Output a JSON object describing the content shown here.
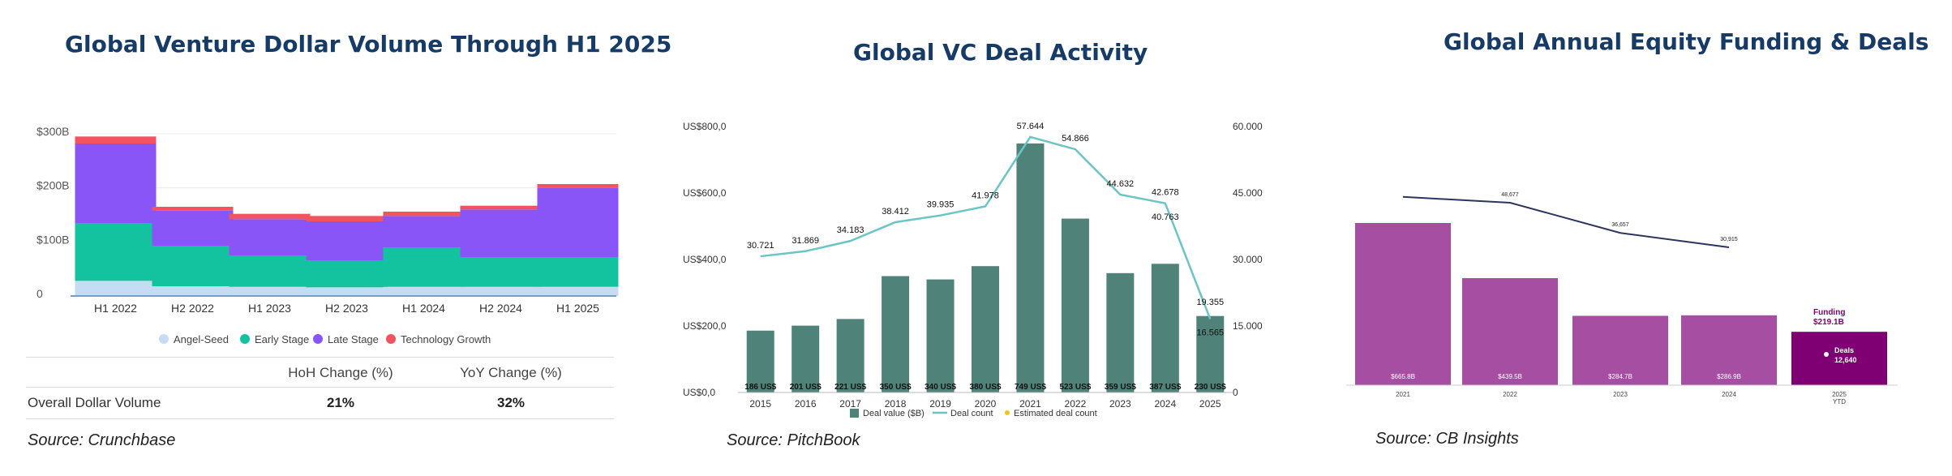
{
  "panels": [
    {
      "title": "Global Venture Dollar Volume Through H1 2025",
      "source": "Source: Crunchbase",
      "table": {
        "headers": [
          "HoH Change (%)",
          "YoY Change (%)"
        ],
        "row_label": "Overall Dollar Volume",
        "values": [
          "21%",
          "32%"
        ]
      }
    },
    {
      "title": "Global VC Deal Activity",
      "source": "Source: PitchBook"
    },
    {
      "title": "Global Annual Equity Funding & Deals",
      "source": "Source: CB Insights"
    }
  ],
  "chart_data": [
    {
      "type": "bar",
      "stacked": true,
      "categories": [
        "H1 2022",
        "H2 2022",
        "H1 2023",
        "H2 2023",
        "H1 2024",
        "H2 2024",
        "H1 2025"
      ],
      "series": [
        {
          "name": "Angel-Seed",
          "color": "#c6dcf2",
          "values": [
            28,
            18,
            17,
            16,
            17,
            17,
            17
          ]
        },
        {
          "name": "Early Stage",
          "color": "#13c3a0",
          "values": [
            107,
            75,
            58,
            50,
            73,
            55,
            55
          ]
        },
        {
          "name": "Late Stage",
          "color": "#8a55f7",
          "values": [
            147,
            65,
            67,
            72,
            58,
            88,
            128
          ]
        },
        {
          "name": "Technology Growth",
          "color": "#f2545f",
          "values": [
            13,
            7,
            10,
            10,
            8,
            7,
            7
          ]
        }
      ],
      "ytick_labels": [
        "0",
        "$100B",
        "$200B",
        "$300B"
      ],
      "ylim": [
        0,
        300
      ],
      "legend": "bottom",
      "grid": true
    },
    {
      "type": "bar+line",
      "categories": [
        "2015",
        "2016",
        "2017",
        "2018",
        "2019",
        "2020",
        "2021",
        "2022",
        "2023",
        "2024",
        "2025"
      ],
      "bars": {
        "name": "Deal value ($B)",
        "color": "#4f8278",
        "values": [
          186,
          201,
          221,
          350,
          340,
          380,
          749,
          523,
          359,
          387,
          230
        ],
        "labels": [
          "186 US$",
          "201 US$",
          "221 US$",
          "350 US$",
          "340 US$",
          "380 US$",
          "749 US$",
          "523 US$",
          "359 US$",
          "387 US$",
          "230 US$"
        ]
      },
      "line": {
        "name": "Deal count",
        "color": "#6cc5c4",
        "values": [
          30721,
          31869,
          34183,
          38412,
          39935,
          41978,
          57644,
          54866,
          44632,
          42678,
          16565
        ],
        "labels": [
          "30.721",
          "31.869",
          "34.183",
          "38.412",
          "39.935",
          "41.978",
          "57.644",
          "54.866",
          "44.632",
          "42.678",
          "16.565"
        ]
      },
      "estimated": {
        "name": "Estimated deal count",
        "color": "#f0c419",
        "points": [
          {
            "x": "2024",
            "value": 40763,
            "label": "40.763"
          },
          {
            "x": "2025",
            "value": 19355,
            "label": "19.355"
          }
        ]
      },
      "y_left": {
        "ticks": [
          "US$0,0",
          "US$200,0",
          "US$400,0",
          "US$600,0",
          "US$800,0"
        ],
        "range": [
          0,
          800
        ]
      },
      "y_right": {
        "ticks": [
          "0",
          "15.000",
          "30.000",
          "45.000",
          "60.000"
        ],
        "range": [
          0,
          60000
        ]
      },
      "legend": "bottom"
    },
    {
      "type": "bar+line",
      "categories": [
        "2021",
        "2022",
        "2023",
        "2024",
        "2025"
      ],
      "category_sublabels": [
        "",
        "",
        "",
        "",
        "YTD"
      ],
      "bars": {
        "values": [
          665.8,
          439.5,
          284.7,
          286.9,
          219.1
        ],
        "labels": [
          "$665.8B",
          "$439.5B",
          "$284.7B",
          "$286.9B",
          ""
        ],
        "colors": [
          "#a64ea2",
          "#a64ea2",
          "#a64ea2",
          "#a64ea2",
          "#7f0073"
        ]
      },
      "line": {
        "color": "#2b3560",
        "values": [
          51000,
          48677,
          36657,
          30915
        ],
        "labels": [
          "",
          "48,677",
          "36,657",
          "30,915"
        ]
      },
      "callout": {
        "funding_label": "Funding",
        "funding_value": "$219.1B",
        "deals_label": "Deals",
        "deals_value": "12,640"
      }
    }
  ]
}
